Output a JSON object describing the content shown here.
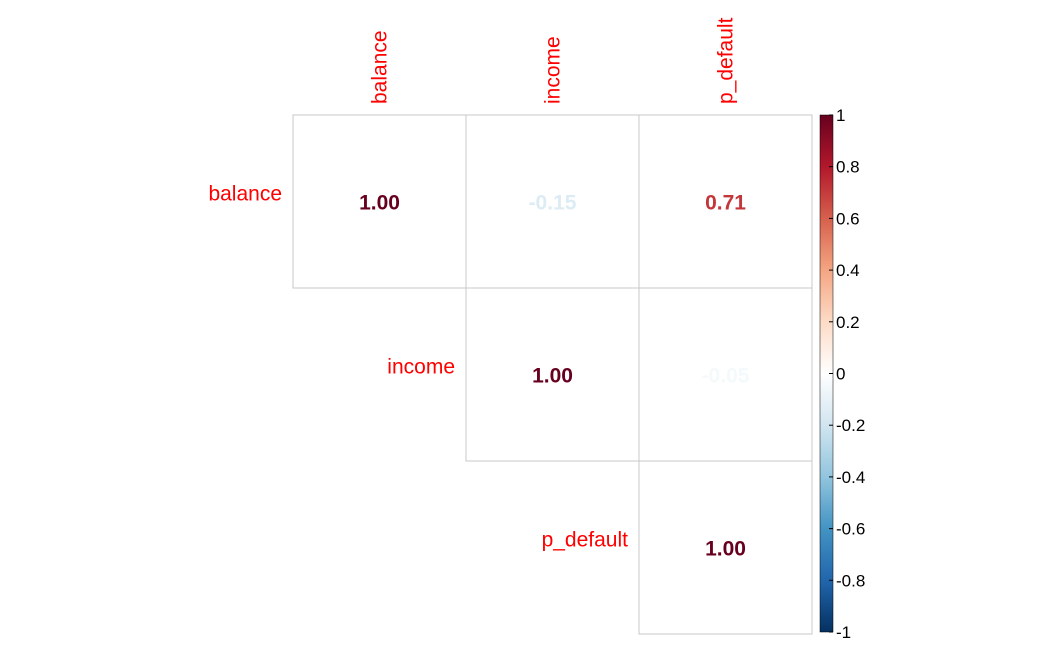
{
  "chart_data": {
    "type": "heatmap",
    "variables": [
      "balance",
      "income",
      "p_default"
    ],
    "layout": "upper-triangle",
    "matrix": [
      [
        1.0,
        -0.15,
        0.71
      ],
      [
        null,
        1.0,
        -0.05
      ],
      [
        null,
        null,
        1.0
      ]
    ],
    "value_labels": [
      [
        "1.00",
        "-0.15",
        "0.71"
      ],
      [
        "",
        "1.00",
        "-0.05"
      ],
      [
        "",
        "",
        "1.00"
      ]
    ],
    "label_color": "#ff0000",
    "grid_color": "#c8c8c8",
    "colorbar": {
      "range": [
        -1,
        1
      ],
      "ticks": [
        1,
        0.8,
        0.6,
        0.4,
        0.2,
        0,
        -0.2,
        -0.4,
        -0.6,
        -0.8,
        -1
      ],
      "tick_labels": [
        "1",
        "0.8",
        "0.6",
        "0.4",
        "0.2",
        "0",
        "-0.2",
        "-0.4",
        "-0.6",
        "-0.8",
        "-1"
      ],
      "colors": [
        "#67001f",
        "#b2182b",
        "#d6604d",
        "#f4a582",
        "#fddbc7",
        "#ffffff",
        "#d1e5f0",
        "#92c5de",
        "#4393c3",
        "#2166ac",
        "#053061"
      ]
    }
  }
}
